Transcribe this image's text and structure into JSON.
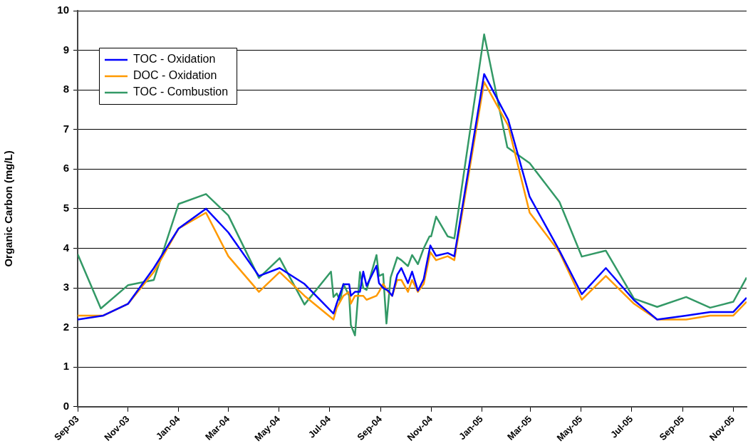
{
  "chart_data": {
    "type": "line",
    "ylabel": "Organic Carbon (mg/L)",
    "x": [
      "2003-09-01",
      "2003-10-02",
      "2003-11-01",
      "2003-12-02",
      "2004-01-01",
      "2004-02-03",
      "2004-03-01",
      "2004-04-07",
      "2004-05-02",
      "2004-06-01",
      "2004-07-06",
      "2004-07-10",
      "2004-07-18",
      "2004-07-25",
      "2004-07-27",
      "2004-08-01",
      "2004-08-07",
      "2004-08-11",
      "2004-08-15",
      "2004-08-27",
      "2004-08-30",
      "2004-09-04",
      "2004-09-10",
      "2004-09-15",
      "2004-09-21",
      "2004-09-26",
      "2004-10-04",
      "2004-10-09",
      "2004-10-16",
      "2004-10-23",
      "2004-10-31",
      "2004-11-07",
      "2004-11-21",
      "2004-11-29",
      "2005-01-04",
      "2005-02-02",
      "2005-02-28",
      "2005-04-05",
      "2005-05-02",
      "2005-05-31",
      "2005-07-04",
      "2005-08-01",
      "2005-09-05",
      "2005-10-04",
      "2005-11-01",
      "2005-11-17"
    ],
    "series": [
      {
        "name": "TOC - Oxidation",
        "color": "#0000ff",
        "values": [
          2.2,
          2.3,
          2.6,
          3.5,
          4.5,
          5.0,
          4.4,
          3.3,
          3.5,
          3.1,
          2.35,
          2.61,
          3.09,
          3.09,
          2.8,
          2.9,
          2.9,
          3.41,
          3.05,
          3.56,
          3.12,
          3.0,
          2.93,
          2.8,
          3.33,
          3.5,
          3.12,
          3.41,
          2.93,
          3.22,
          4.07,
          3.81,
          3.88,
          3.8,
          8.4,
          7.25,
          5.3,
          3.94,
          2.84,
          3.5,
          2.69,
          2.2,
          2.3,
          2.39,
          2.39,
          2.75
        ]
      },
      {
        "name": "DOC - Oxidation",
        "color": "#ff9900",
        "values": [
          2.3,
          2.3,
          2.6,
          3.4,
          4.5,
          4.9,
          3.8,
          2.9,
          3.4,
          2.8,
          2.2,
          2.5,
          2.8,
          2.9,
          2.6,
          2.8,
          2.8,
          2.8,
          2.7,
          2.8,
          2.9,
          3.1,
          2.9,
          2.8,
          3.2,
          3.2,
          2.9,
          3.2,
          2.9,
          3.1,
          3.9,
          3.7,
          3.8,
          3.7,
          8.2,
          7.1,
          4.9,
          3.9,
          2.7,
          3.3,
          2.6,
          2.2,
          2.2,
          2.3,
          2.3,
          2.65
        ]
      },
      {
        "name": "TOC - Combustion",
        "color": "#339966",
        "x": [
          "2003-09-01",
          "2003-09-29",
          "2003-11-01",
          "2003-12-02",
          "2004-01-01",
          "2004-02-03",
          "2004-03-01",
          "2004-04-07",
          "2004-05-02",
          "2004-06-01",
          "2004-07-03",
          "2004-07-06",
          "2004-07-10",
          "2004-07-14",
          "2004-07-18",
          "2004-07-25",
          "2004-07-27",
          "2004-08-01",
          "2004-08-07",
          "2004-08-11",
          "2004-08-15",
          "2004-08-27",
          "2004-08-30",
          "2004-09-04",
          "2004-09-08",
          "2004-09-13",
          "2004-09-21",
          "2004-09-26",
          "2004-10-04",
          "2004-10-09",
          "2004-10-16",
          "2004-10-23",
          "2004-10-30",
          "2004-11-01",
          "2004-11-07",
          "2004-11-21",
          "2004-11-29",
          "2005-01-04",
          "2005-02-01",
          "2005-02-28",
          "2005-04-05",
          "2005-05-02",
          "2005-05-31",
          "2005-07-04",
          "2005-08-01",
          "2005-09-05",
          "2005-10-04",
          "2005-11-01",
          "2005-11-17"
        ],
        "values": [
          3.85,
          2.48,
          3.07,
          3.2,
          5.12,
          5.37,
          4.83,
          3.25,
          3.75,
          2.58,
          3.41,
          2.77,
          2.86,
          2.67,
          3.1,
          2.8,
          2.06,
          1.8,
          3.4,
          3.0,
          2.95,
          3.83,
          3.3,
          3.35,
          2.1,
          3.26,
          3.77,
          3.7,
          3.55,
          3.83,
          3.6,
          4.0,
          4.3,
          4.3,
          4.8,
          4.3,
          4.25,
          9.4,
          6.55,
          6.15,
          5.17,
          3.79,
          3.94,
          2.73,
          2.52,
          2.77,
          2.5,
          2.65,
          3.26
        ]
      }
    ],
    "xlim": [
      "2003-09-01",
      "2005-11-17"
    ],
    "xticks": [
      {
        "value": "2003-09-01",
        "label": "Sep-03"
      },
      {
        "value": "2003-11-01",
        "label": "Nov-03"
      },
      {
        "value": "2004-01-01",
        "label": "Jan-04"
      },
      {
        "value": "2004-03-01",
        "label": "Mar-04"
      },
      {
        "value": "2004-05-01",
        "label": "May-04"
      },
      {
        "value": "2004-07-01",
        "label": "Jul-04"
      },
      {
        "value": "2004-09-01",
        "label": "Sep-04"
      },
      {
        "value": "2004-11-01",
        "label": "Nov-04"
      },
      {
        "value": "2005-01-01",
        "label": "Jan-05"
      },
      {
        "value": "2005-03-01",
        "label": "Mar-05"
      },
      {
        "value": "2005-05-01",
        "label": "May-05"
      },
      {
        "value": "2005-07-01",
        "label": "Jul-05"
      },
      {
        "value": "2005-09-01",
        "label": "Sep-05"
      },
      {
        "value": "2005-11-01",
        "label": "Nov-05"
      }
    ],
    "ylim": [
      0,
      10
    ],
    "yticks": [
      0,
      1,
      2,
      3,
      4,
      5,
      6,
      7,
      8,
      9,
      10
    ],
    "grid": "y",
    "legend": "top left",
    "marker": "none",
    "line_style": "solid"
  }
}
